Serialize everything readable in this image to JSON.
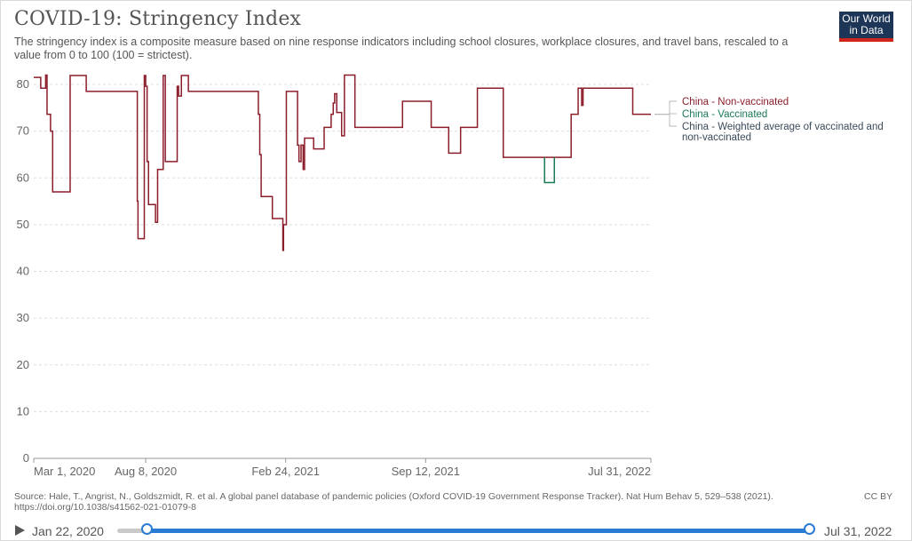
{
  "header": {
    "title": "COVID-19: Stringency Index",
    "subtitle": "The stringency index is a composite measure based on nine response indicators including school closures, workplace closures, and travel bans, rescaled to a value from 0 to 100 (100 = strictest).",
    "logo_line1": "Our World",
    "logo_line2": "in Data"
  },
  "footer": {
    "source": "Source: Hale, T., Angrist, N., Goldszmidt, R. et al. A global panel database of pandemic policies (Oxford COVID-19 Government Response Tracker). Nat Hum Behav 5, 529–538 (2021).",
    "doi": "https://doi.org/10.1038/s41562-021-01079-8",
    "license": "CC BY"
  },
  "timeline": {
    "start_label": "Jan 22, 2020",
    "end_label": "Jul 31, 2022"
  },
  "colors": {
    "non_vaccinated": "#8c1d2b",
    "vaccinated": "#1a7a54",
    "weighted": "#3a4a5a",
    "grid": "#dddddd",
    "accent": "#2a7bd4"
  },
  "chart_data": {
    "type": "line",
    "x_type": "date",
    "xlim": [
      "2020-03-01",
      "2022-07-31"
    ],
    "ylim": [
      0,
      80
    ],
    "grid": true,
    "legend_placement": "right",
    "x_ticks": [
      {
        "label": "Mar 1, 2020",
        "date": "2020-03-01"
      },
      {
        "label": "Aug 8, 2020",
        "date": "2020-08-08"
      },
      {
        "label": "Feb 24, 2021",
        "date": "2021-02-24"
      },
      {
        "label": "Sep 12, 2021",
        "date": "2021-09-12"
      },
      {
        "label": "Jul 31, 2022",
        "date": "2022-07-31"
      }
    ],
    "y_ticks": [
      0,
      10,
      20,
      30,
      40,
      50,
      60,
      70,
      80
    ],
    "series": [
      {
        "name": "China - Non-vaccinated",
        "color": "#8c1d2b",
        "points": [
          [
            "2020-03-01",
            81.5
          ],
          [
            "2020-03-11",
            81.5
          ],
          [
            "2020-03-11",
            79.2
          ],
          [
            "2020-03-18",
            79.2
          ],
          [
            "2020-03-18",
            82.0
          ],
          [
            "2020-03-20",
            82.0
          ],
          [
            "2020-03-20",
            73.6
          ],
          [
            "2020-03-25",
            73.6
          ],
          [
            "2020-03-25",
            70.0
          ],
          [
            "2020-03-28",
            70.0
          ],
          [
            "2020-03-28",
            57.0
          ],
          [
            "2020-04-22",
            57.0
          ],
          [
            "2020-04-22",
            81.9
          ],
          [
            "2020-05-15",
            81.9
          ],
          [
            "2020-05-15",
            78.5
          ],
          [
            "2020-07-27",
            78.5
          ],
          [
            "2020-07-27",
            55.0
          ],
          [
            "2020-07-28",
            55.0
          ],
          [
            "2020-07-28",
            47.0
          ],
          [
            "2020-08-06",
            47.0
          ],
          [
            "2020-08-06",
            81.9
          ],
          [
            "2020-08-08",
            81.9
          ],
          [
            "2020-08-08",
            79.6
          ],
          [
            "2020-08-10",
            79.6
          ],
          [
            "2020-08-10",
            63.5
          ],
          [
            "2020-08-12",
            63.5
          ],
          [
            "2020-08-12",
            54.3
          ],
          [
            "2020-08-22",
            54.3
          ],
          [
            "2020-08-22",
            50.5
          ],
          [
            "2020-08-25",
            50.5
          ],
          [
            "2020-08-25",
            61.8
          ],
          [
            "2020-09-02",
            61.8
          ],
          [
            "2020-09-02",
            81.9
          ],
          [
            "2020-09-05",
            81.9
          ],
          [
            "2020-09-05",
            63.5
          ],
          [
            "2020-09-22",
            63.5
          ],
          [
            "2020-09-22",
            79.6
          ],
          [
            "2020-09-24",
            79.6
          ],
          [
            "2020-09-24",
            77.5
          ],
          [
            "2020-09-28",
            77.5
          ],
          [
            "2020-09-28",
            81.9
          ],
          [
            "2020-10-08",
            81.9
          ],
          [
            "2020-10-08",
            78.5
          ],
          [
            "2021-01-16",
            78.5
          ],
          [
            "2021-01-16",
            73.6
          ],
          [
            "2021-01-18",
            73.6
          ],
          [
            "2021-01-18",
            65.0
          ],
          [
            "2021-01-20",
            65.0
          ],
          [
            "2021-01-20",
            56.0
          ],
          [
            "2021-02-05",
            56.0
          ],
          [
            "2021-02-05",
            51.3
          ],
          [
            "2021-02-20",
            51.3
          ],
          [
            "2021-02-20",
            44.5
          ],
          [
            "2021-02-21",
            44.5
          ],
          [
            "2021-02-21",
            50.0
          ],
          [
            "2021-02-25",
            50.0
          ],
          [
            "2021-02-25",
            78.5
          ],
          [
            "2021-03-13",
            78.5
          ],
          [
            "2021-03-13",
            67.0
          ],
          [
            "2021-03-15",
            67.0
          ],
          [
            "2021-03-15",
            63.5
          ],
          [
            "2021-03-18",
            63.5
          ],
          [
            "2021-03-18",
            67.0
          ],
          [
            "2021-03-21",
            67.0
          ],
          [
            "2021-03-21",
            61.8
          ],
          [
            "2021-03-23",
            61.8
          ],
          [
            "2021-03-23",
            68.5
          ],
          [
            "2021-04-05",
            68.5
          ],
          [
            "2021-04-05",
            66.2
          ],
          [
            "2021-04-20",
            66.2
          ],
          [
            "2021-04-20",
            70.8
          ],
          [
            "2021-04-30",
            70.8
          ],
          [
            "2021-04-30",
            73.6
          ],
          [
            "2021-05-03",
            73.6
          ],
          [
            "2021-05-03",
            76.0
          ],
          [
            "2021-05-05",
            76.0
          ],
          [
            "2021-05-05",
            78.0
          ],
          [
            "2021-05-08",
            78.0
          ],
          [
            "2021-05-08",
            74.0
          ],
          [
            "2021-05-15",
            74.0
          ],
          [
            "2021-05-15",
            69.0
          ],
          [
            "2021-05-19",
            69.0
          ],
          [
            "2021-05-19",
            82.0
          ],
          [
            "2021-06-03",
            82.0
          ],
          [
            "2021-06-03",
            70.8
          ],
          [
            "2021-08-10",
            70.8
          ],
          [
            "2021-08-10",
            76.4
          ],
          [
            "2021-09-20",
            76.4
          ],
          [
            "2021-09-20",
            70.8
          ],
          [
            "2021-10-15",
            70.8
          ],
          [
            "2021-10-15",
            65.3
          ],
          [
            "2021-11-01",
            65.3
          ],
          [
            "2021-11-01",
            70.8
          ],
          [
            "2021-11-25",
            70.8
          ],
          [
            "2021-11-25",
            79.2
          ],
          [
            "2022-01-01",
            79.2
          ],
          [
            "2022-01-01",
            64.4
          ],
          [
            "2022-04-08",
            64.4
          ],
          [
            "2022-04-08",
            73.6
          ],
          [
            "2022-04-18",
            73.6
          ],
          [
            "2022-04-18",
            79.2
          ],
          [
            "2022-04-23",
            79.2
          ],
          [
            "2022-04-23",
            75.5
          ],
          [
            "2022-04-25",
            75.5
          ],
          [
            "2022-04-25",
            79.2
          ],
          [
            "2022-07-05",
            79.2
          ],
          [
            "2022-07-05",
            73.6
          ],
          [
            "2022-07-31",
            73.6
          ]
        ]
      },
      {
        "name": "China - Vaccinated",
        "color": "#1a7a54",
        "points": [
          [
            "2022-03-01",
            64.4
          ],
          [
            "2022-03-01",
            59.0
          ],
          [
            "2022-03-15",
            59.0
          ],
          [
            "2022-03-15",
            64.4
          ]
        ]
      },
      {
        "name": "China - Weighted average of vaccinated and non-vaccinated",
        "color": "#3a4a5a",
        "points": []
      }
    ]
  }
}
